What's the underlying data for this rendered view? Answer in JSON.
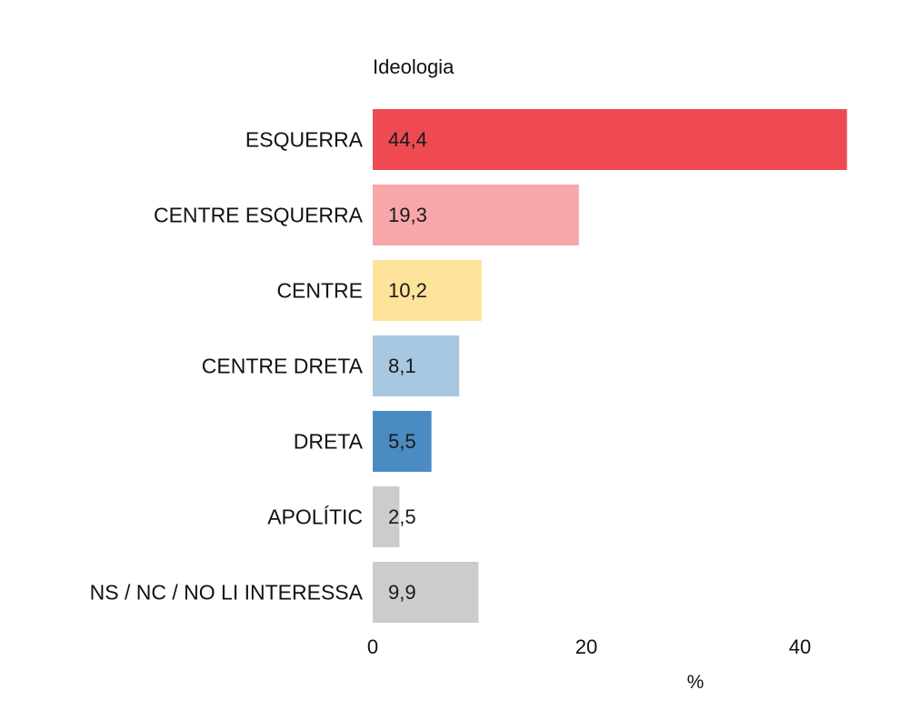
{
  "chart_data": {
    "type": "bar",
    "orientation": "horizontal",
    "title": "Ideologia",
    "xlabel": "%",
    "ylabel": "",
    "xlim": [
      0,
      45
    ],
    "xticks": [
      0,
      20,
      40
    ],
    "grid": false,
    "legend": "none",
    "categories": [
      "ESQUERRA",
      "CENTRE ESQUERRA",
      "CENTRE",
      "CENTRE DRETA",
      "DRETA",
      "APOLÍTIC",
      "NS / NC / NO LI INTERESSA"
    ],
    "values": [
      44.4,
      19.3,
      10.2,
      8.1,
      5.5,
      2.5,
      9.9
    ],
    "value_labels": [
      "44,4",
      "19,3",
      "10,2",
      "8,1",
      "5,5",
      "2,5",
      "9,9"
    ],
    "colors": [
      "#ef4a52",
      "#f7a6a9",
      "#fde49a",
      "#a8c8e2",
      "#4a8cc2",
      "#cccccc",
      "#cccccc"
    ]
  }
}
